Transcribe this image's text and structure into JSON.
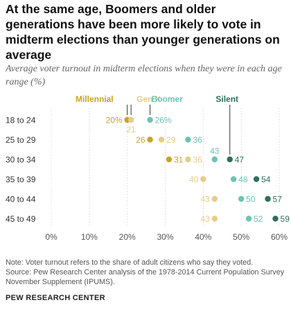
{
  "title": "At the same age, Boomers and older generations have been more likely to vote in midterm elections than younger generations on average",
  "subtitle": "Average voter turnout in midterm elections when they were in each age range (%)",
  "note": "Note: Voter turnout refers to the share of adult citizens who say they voted.",
  "source": "Source: Pew Research Center analysis of the 1978-2014 Current Population Survey November Supplement (IPUMS).",
  "organization": "PEW RESEARCH CENTER",
  "chart_data": {
    "type": "scatter",
    "categories": [
      "18 to 24",
      "25 to 29",
      "30 to 34",
      "35 to 39",
      "40 to 44",
      "45 to 49"
    ],
    "xlim": [
      0,
      60
    ],
    "x_ticks": [
      "0%",
      "10%",
      "20%",
      "30%",
      "40%",
      "50%",
      "60%"
    ],
    "grid": true,
    "series": [
      {
        "name": "Millennial",
        "color": "#c9a227",
        "values": [
          20,
          26,
          31,
          null,
          null,
          null
        ],
        "labels": [
          "20%",
          "26",
          "31",
          "",
          "",
          ""
        ]
      },
      {
        "name": "Gen X",
        "color": "#e6cc8a",
        "values": [
          21,
          29,
          36,
          40,
          43,
          43
        ],
        "labels": [
          "21",
          "29",
          "36",
          "40",
          "43",
          "43"
        ]
      },
      {
        "name": "Boomer",
        "color": "#6cc3b3",
        "values": [
          26,
          36,
          43,
          48,
          50,
          52
        ],
        "labels": [
          "26%",
          "36",
          "43",
          "48",
          "50",
          "52"
        ]
      },
      {
        "name": "Silent",
        "color": "#2f6f5c",
        "values": [
          null,
          null,
          47,
          54,
          57,
          59
        ],
        "labels": [
          "",
          "",
          "47",
          "54",
          "57",
          "59"
        ]
      }
    ]
  }
}
